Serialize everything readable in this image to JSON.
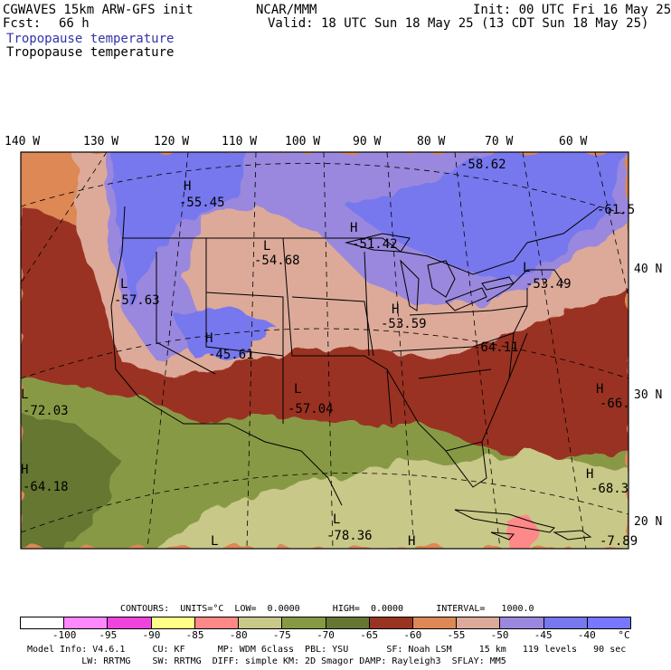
{
  "header": {
    "model": "CGWAVES 15km ARW-GFS init",
    "fcst_label": "Fcst:",
    "fcst_hours": "66 h",
    "org": "NCAR/MMM",
    "init": "Init: 00 UTC Fri 16 May 25",
    "valid": "Valid: 18 UTC Sun 18 May 25 (13 CDT Sun 18 May 25)",
    "field_shaded": "Tropopause temperature",
    "field_contour": "Tropopause temperature"
  },
  "lon_labels": [
    "140 W",
    "130 W",
    "120 W",
    "110 W",
    "100 W",
    "90 W",
    "80 W",
    "70 W",
    "60 W"
  ],
  "lat_labels": [
    "40 N",
    "30 N",
    "20 N"
  ],
  "extrema": [
    {
      "type": "H",
      "value": "-55.45"
    },
    {
      "type": "L",
      "value": "-54.68"
    },
    {
      "type": "H",
      "value": "-51.42"
    },
    {
      "type": "",
      "value": "-58.62"
    },
    {
      "type": "",
      "value": "-61.5"
    },
    {
      "type": "L",
      "value": "-57.63"
    },
    {
      "type": "H",
      "value": "-45.61"
    },
    {
      "type": "H",
      "value": "-53.59"
    },
    {
      "type": "L",
      "value": "-53.49"
    },
    {
      "type": "",
      "value": "-64.11"
    },
    {
      "type": "L",
      "value": "-57.04"
    },
    {
      "type": "L",
      "value": "-72.03"
    },
    {
      "type": "H",
      "value": "-66."
    },
    {
      "type": "H",
      "value": "-64.18"
    },
    {
      "type": "H",
      "value": "-68.3"
    },
    {
      "type": "L",
      "value": "-78.36"
    },
    {
      "type": "L",
      "value": ""
    },
    {
      "type": "H",
      "value": ""
    },
    {
      "type": "",
      "value": "-7.89"
    }
  ],
  "contours_line": "CONTOURS:  UNITS=°C  LOW=  0.0000      HIGH=  0.0000      INTERVAL=   1000.0",
  "colorbar": {
    "colors": [
      "#ffffff",
      "#ff88ff",
      "#ee44dd",
      "#ffff88",
      "#ff8888",
      "#c8c888",
      "#889944",
      "#667733",
      "#993322",
      "#dd8855",
      "#ddaa99",
      "#9988dd",
      "#7777ee",
      "#7777ff"
    ],
    "ticks": [
      "-100",
      "-95",
      "-90",
      "-85",
      "-80",
      "-75",
      "-70",
      "-65",
      "-60",
      "-55",
      "-50",
      "-45",
      "-40"
    ],
    "unit": "°C"
  },
  "footer": {
    "line1": "Model Info: V4.6.1     CU: KF      MP: WDM 6class  PBL: YSU       SF: Noah LSM     15 km   119 levels   90 sec",
    "line2": "          LW: RRTMG    SW: RRTMG  DIFF: simple KM: 2D Smagor DAMP: Rayleigh3  SFLAY: MM5"
  }
}
